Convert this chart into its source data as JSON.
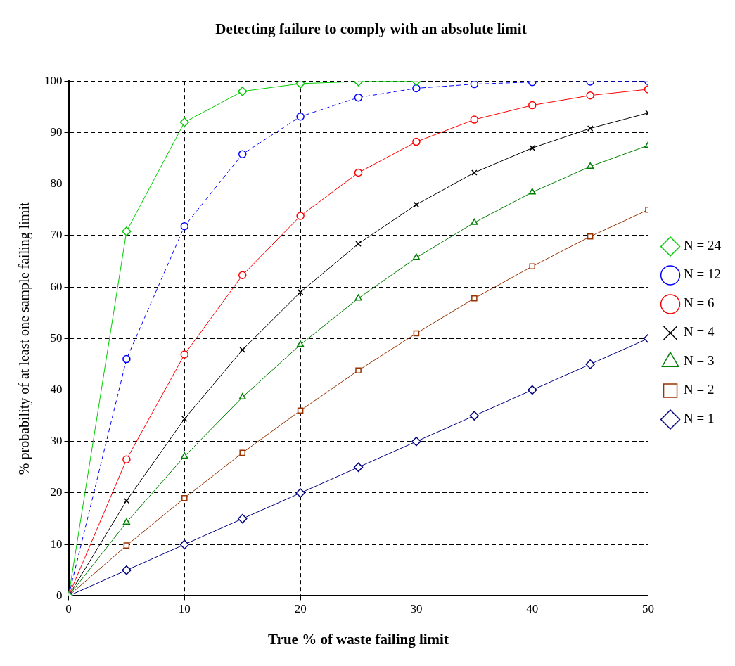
{
  "chart_data": {
    "type": "line",
    "title": "Detecting failure to comply with an absolute limit",
    "xlabel": "True % of waste failing limit",
    "ylabel": "% probability of at least one sample failing limit",
    "x": [
      0,
      5,
      10,
      15,
      20,
      25,
      30,
      35,
      40,
      45,
      50
    ],
    "xlim": [
      0,
      50
    ],
    "xticks": [
      0,
      10,
      20,
      30,
      40,
      50
    ],
    "ylim": [
      0,
      100
    ],
    "yticks": [
      0,
      10,
      20,
      30,
      40,
      50,
      60,
      70,
      80,
      90,
      100
    ],
    "grid": true,
    "legend": "right",
    "line_style": "solid",
    "series": [
      {
        "name": "N = 24",
        "color": "#00cc00",
        "marker": "diamond",
        "values": [
          0,
          70.8,
          92.0,
          98.0,
          99.5,
          99.9,
          100,
          null,
          null,
          null,
          null
        ]
      },
      {
        "name": "N = 12",
        "color": "#0000ff",
        "marker": "circle",
        "line_style": "dashed",
        "values": [
          0,
          46.0,
          71.8,
          85.8,
          93.1,
          96.8,
          98.6,
          99.4,
          99.8,
          99.9,
          100
        ]
      },
      {
        "name": "N = 6",
        "color": "#ff0000",
        "marker": "circle",
        "values": [
          0,
          26.5,
          46.9,
          62.3,
          73.8,
          82.2,
          88.2,
          92.5,
          95.3,
          97.2,
          98.4
        ]
      },
      {
        "name": "N = 4",
        "color": "#000000",
        "marker": "cross",
        "values": [
          0,
          18.5,
          34.4,
          47.8,
          59.0,
          68.4,
          76.0,
          82.2,
          87.0,
          90.8,
          93.8
        ]
      },
      {
        "name": "N = 3",
        "color": "#008000",
        "marker": "triangle",
        "values": [
          0,
          14.3,
          27.1,
          38.6,
          48.8,
          57.8,
          65.7,
          72.5,
          78.4,
          83.4,
          87.5
        ]
      },
      {
        "name": "N = 2",
        "color": "#993300",
        "marker": "square",
        "values": [
          0,
          9.8,
          19.0,
          27.8,
          36.0,
          43.8,
          51.0,
          57.8,
          64.0,
          69.8,
          75.0
        ]
      },
      {
        "name": "N = 1",
        "color": "#000080",
        "marker": "diamond",
        "values": [
          0,
          5,
          10,
          15,
          20,
          25,
          30,
          35,
          40,
          45,
          50
        ]
      }
    ]
  }
}
